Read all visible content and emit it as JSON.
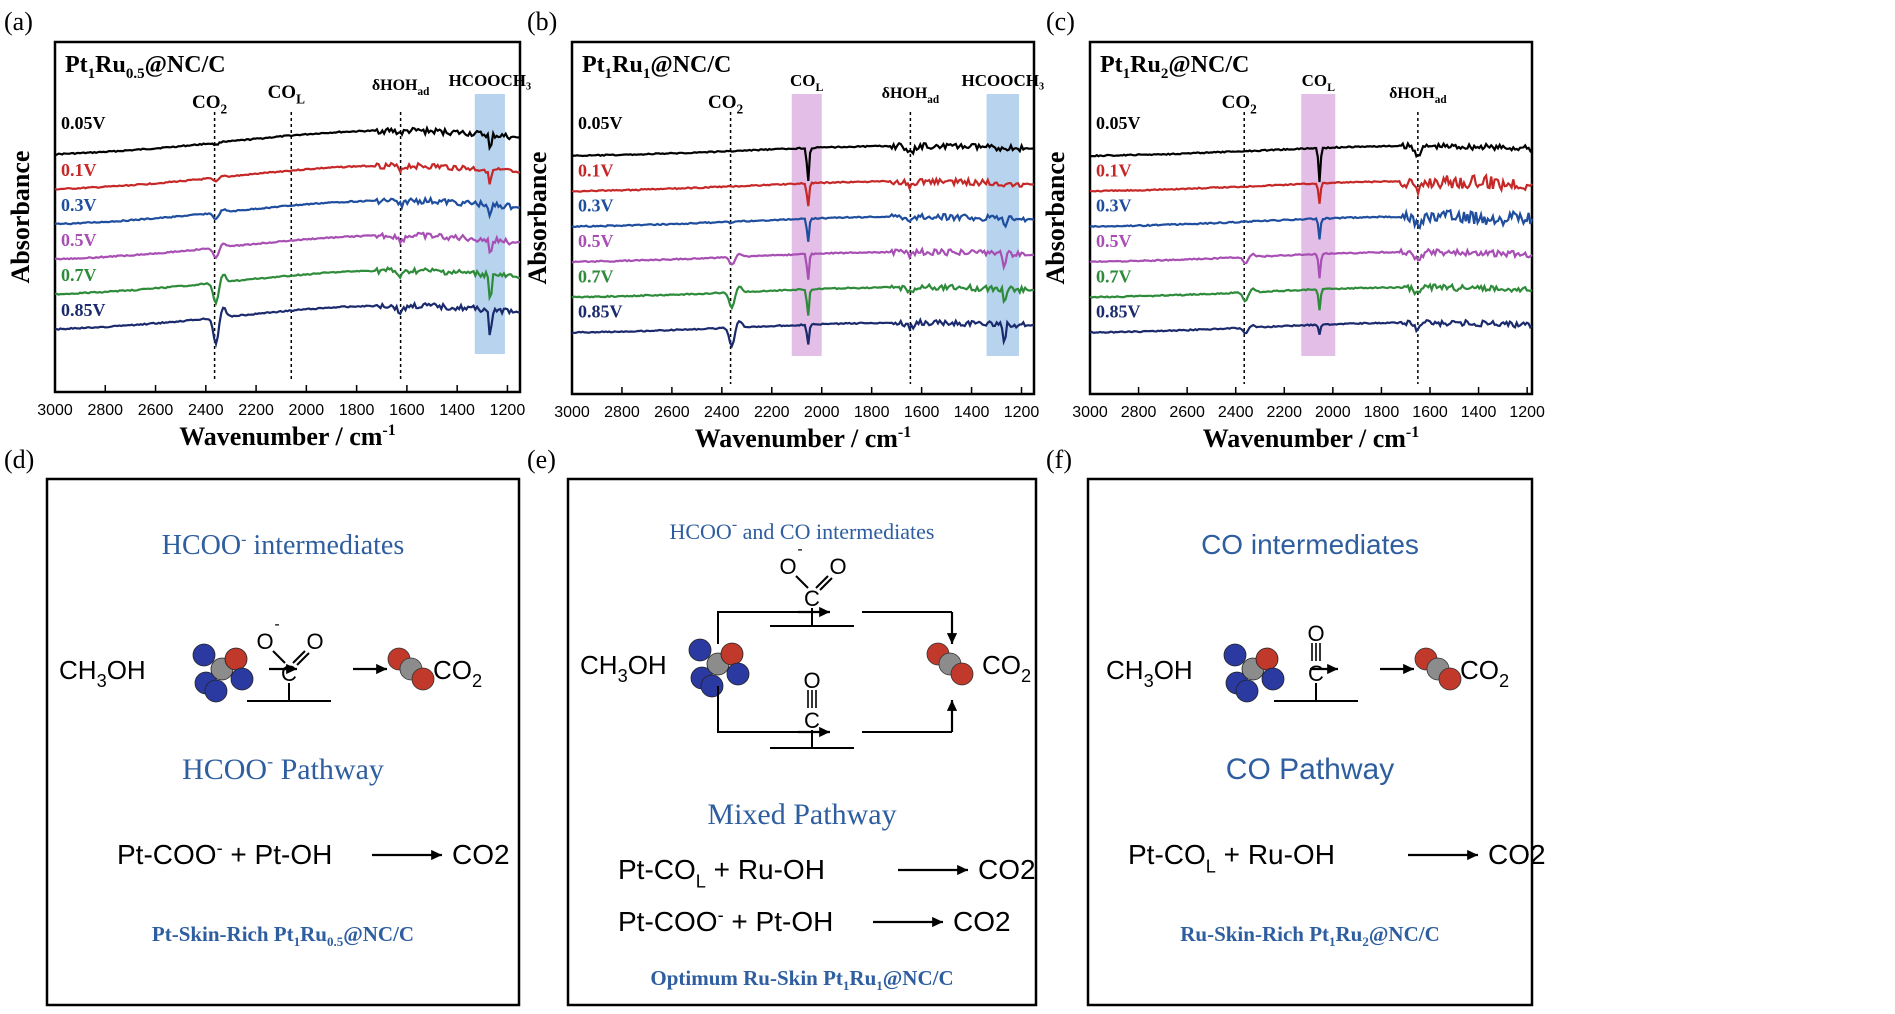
{
  "panels_top": [
    {
      "letter": "(a)",
      "sample": {
        "pre": "Pt",
        "s1": "1",
        "mid": "Ru",
        "s2": "0.5",
        "post": "@NC/C"
      },
      "xlabel": "Wavenumber / cm",
      "xlabel_sup": "-1",
      "ylabel": "Absorbance",
      "xticks": [
        3000,
        2800,
        2600,
        2400,
        2200,
        2000,
        1800,
        1600,
        1400,
        1200
      ],
      "xlim": [
        3000,
        1150
      ],
      "markers": [
        {
          "x": 2365,
          "label": "CO",
          "sub": "2"
        },
        {
          "x": 2060,
          "label": "CO",
          "sub": "L"
        },
        {
          "x": 1625,
          "label": "δHOH",
          "sub": "ad"
        }
      ],
      "bands": [
        {
          "from": 1330,
          "to": 1210,
          "color": "#9fc4e8",
          "label": "HCOOCH₃"
        }
      ],
      "potentials": [
        "0.05V",
        "0.1V",
        "0.3V",
        "0.5V",
        "0.7V",
        "0.85V"
      ],
      "colors": [
        "#000000",
        "#c62828",
        "#1f4e9e",
        "#a74fb3",
        "#2e8b3a",
        "#1a2a6c"
      ],
      "co2_depths": [
        0.08,
        0.15,
        0.25,
        0.4,
        0.8,
        1.0
      ],
      "col_depths": [
        0,
        0,
        0,
        0,
        0,
        0
      ],
      "hoh_depths": [
        0.15,
        0.2,
        0.25,
        0.3,
        0.35,
        0.4
      ],
      "ester_depths": [
        0.6,
        0.5,
        0.45,
        0.55,
        0.9,
        1.0
      ]
    },
    {
      "letter": "(b)",
      "sample": {
        "pre": "Pt",
        "s1": "1",
        "mid": "Ru",
        "s2": "1",
        "post": "@NC/C"
      },
      "xlabel": "Wavenumber / cm",
      "xlabel_sup": "-1",
      "ylabel": "Absorbance",
      "xticks": [
        3000,
        2800,
        2600,
        2400,
        2200,
        2000,
        1800,
        1600,
        1400,
        1200
      ],
      "xlim": [
        3000,
        1150
      ],
      "markers": [
        {
          "x": 2365,
          "label": "CO",
          "sub": "2"
        },
        {
          "x": 1645,
          "label": "δHOH",
          "sub": "ad"
        }
      ],
      "bands": [
        {
          "from": 2120,
          "to": 2000,
          "color": "#d9a8dd",
          "label": "CO",
          "label_sub": "L"
        },
        {
          "from": 1340,
          "to": 1210,
          "color": "#9fc4e8",
          "label": "HCOOCH₃"
        }
      ],
      "potentials": [
        "0.05V",
        "0.1V",
        "0.3V",
        "0.5V",
        "0.7V",
        "0.85V"
      ],
      "colors": [
        "#000000",
        "#c62828",
        "#1f4e9e",
        "#a74fb3",
        "#2e8b3a",
        "#1a2a6c"
      ],
      "co2_depths": [
        0,
        0,
        0.05,
        0.3,
        0.6,
        0.7
      ],
      "col_depths": [
        1.0,
        0.7,
        0.7,
        0.8,
        0.8,
        0.6
      ],
      "hoh_depths": [
        0.5,
        0.3,
        0.2,
        0.2,
        0.2,
        0.3
      ],
      "ester_depths": [
        0.1,
        0.1,
        0.3,
        0.6,
        0.6,
        0.6
      ]
    },
    {
      "letter": "(c)",
      "sample": {
        "pre": "Pt",
        "s1": "1",
        "mid": "Ru",
        "s2": "2",
        "post": "@NC/C"
      },
      "xlabel": "Wavenumber / cm",
      "xlabel_sup": "-1",
      "ylabel": "Absorbance",
      "xticks": [
        3000,
        2800,
        2600,
        2400,
        2200,
        2000,
        1800,
        1600,
        1400,
        1200
      ],
      "xlim": [
        3000,
        1180
      ],
      "markers": [
        {
          "x": 2365,
          "label": "CO",
          "sub": "2"
        },
        {
          "x": 1650,
          "label": "δHOH",
          "sub": "ad"
        }
      ],
      "bands": [
        {
          "from": 2130,
          "to": 1990,
          "color": "#d9a8dd",
          "label": "CO",
          "label_sub": "L"
        }
      ],
      "potentials": [
        "0.05V",
        "0.1V",
        "0.3V",
        "0.5V",
        "0.7V",
        "0.85V"
      ],
      "colors": [
        "#000000",
        "#c62828",
        "#1f4e9e",
        "#a74fb3",
        "#2e8b3a",
        "#1a2a6c"
      ],
      "co2_depths": [
        0,
        0,
        0,
        0.25,
        0.35,
        0.2
      ],
      "col_depths": [
        1.0,
        0.6,
        0.6,
        0.7,
        0.6,
        0.3
      ],
      "hoh_depths": [
        0.5,
        0.7,
        0.6,
        0.5,
        0.4,
        0.4
      ],
      "ester_depths": [
        0,
        0,
        0,
        0,
        0,
        0
      ]
    }
  ],
  "panels_bottom": [
    {
      "letter": "(d)",
      "title": "HCOO",
      "title_sup": "-",
      "title_rest": "intermediates",
      "reactant": "CH",
      "reactant_sub": "3",
      "reactant_rest": "OH",
      "product": "CO",
      "product_sub": "2",
      "pathway": "HCOO",
      "pathway_sup": "-",
      "pathway_rest": "Pathway",
      "eq1": {
        "a": "Pt-COO",
        "a_sup": "-",
        "b": "+ Pt-OH",
        "p": "CO",
        "p_sub": "2"
      },
      "skin": {
        "pre": "Pt-Skin-Rich  Pt",
        "s1": "1",
        "mid": "Ru",
        "s2": "0.5",
        "post": "@NC/C"
      }
    },
    {
      "letter": "(e)",
      "title": "HCOO",
      "title_sup": "-",
      "title_rest": "and CO  intermediates",
      "reactant": "CH",
      "reactant_sub": "3",
      "reactant_rest": "OH",
      "product": "CO",
      "product_sub": "2",
      "pathway": "Mixed  Pathway",
      "eq1": {
        "a": "Pt-CO",
        "a_sub": "L",
        "b": "+ Ru-OH",
        "p": "CO",
        "p_sub": "2"
      },
      "eq2": {
        "a": "Pt-COO",
        "a_sup": "-",
        "b": "+ Pt-OH",
        "p": "CO",
        "p_sub": "2"
      },
      "skin": {
        "pre": "Optimum Ru-Skin  Pt",
        "s1": "1",
        "mid": "Ru",
        "s2": "1",
        "post": "@NC/C"
      }
    },
    {
      "letter": "(f)",
      "title": "CO  intermediates",
      "reactant": "CH",
      "reactant_sub": "3",
      "reactant_rest": "OH",
      "product": "CO",
      "product_sub": "2",
      "pathway": "CO  Pathway",
      "eq1": {
        "a": "Pt-CO",
        "a_sub": "L",
        "b": "+ Ru-OH",
        "p": "CO",
        "p_sub": "2"
      },
      "skin": {
        "pre": "Ru-Skin-Rich  Pt",
        "s1": "1",
        "mid": "Ru",
        "s2": "2",
        "post": "@NC/C"
      }
    }
  ],
  "chart_data": [
    {
      "type": "line",
      "title": "Pt1Ru0.5@NC/C",
      "xlabel": "Wavenumber / cm-1",
      "ylabel": "Absorbance",
      "xlim": [
        3000,
        1150
      ],
      "series": [
        {
          "name": "0.05V"
        },
        {
          "name": "0.1V"
        },
        {
          "name": "0.3V"
        },
        {
          "name": "0.5V"
        },
        {
          "name": "0.7V"
        },
        {
          "name": "0.85V"
        }
      ],
      "annotations": [
        "CO2 (2365)",
        "COL (2060)",
        "δHOHad (1625)",
        "HCOOCH3 (1330–1210)"
      ]
    },
    {
      "type": "line",
      "title": "Pt1Ru1@NC/C",
      "xlabel": "Wavenumber / cm-1",
      "ylabel": "Absorbance",
      "xlim": [
        3000,
        1150
      ],
      "series": [
        {
          "name": "0.05V"
        },
        {
          "name": "0.1V"
        },
        {
          "name": "0.3V"
        },
        {
          "name": "0.5V"
        },
        {
          "name": "0.7V"
        },
        {
          "name": "0.85V"
        }
      ],
      "annotations": [
        "CO2 (2365)",
        "COL (2120–2000)",
        "δHOHad (1645)",
        "HCOOCH3 (1340–1210)"
      ]
    },
    {
      "type": "line",
      "title": "Pt1Ru2@NC/C",
      "xlabel": "Wavenumber / cm-1",
      "ylabel": "Absorbance",
      "xlim": [
        3000,
        1180
      ],
      "series": [
        {
          "name": "0.05V"
        },
        {
          "name": "0.1V"
        },
        {
          "name": "0.3V"
        },
        {
          "name": "0.5V"
        },
        {
          "name": "0.7V"
        },
        {
          "name": "0.85V"
        }
      ],
      "annotations": [
        "CO2 (2365)",
        "COL (2130–1990)",
        "δHOHad (1650)"
      ]
    }
  ]
}
